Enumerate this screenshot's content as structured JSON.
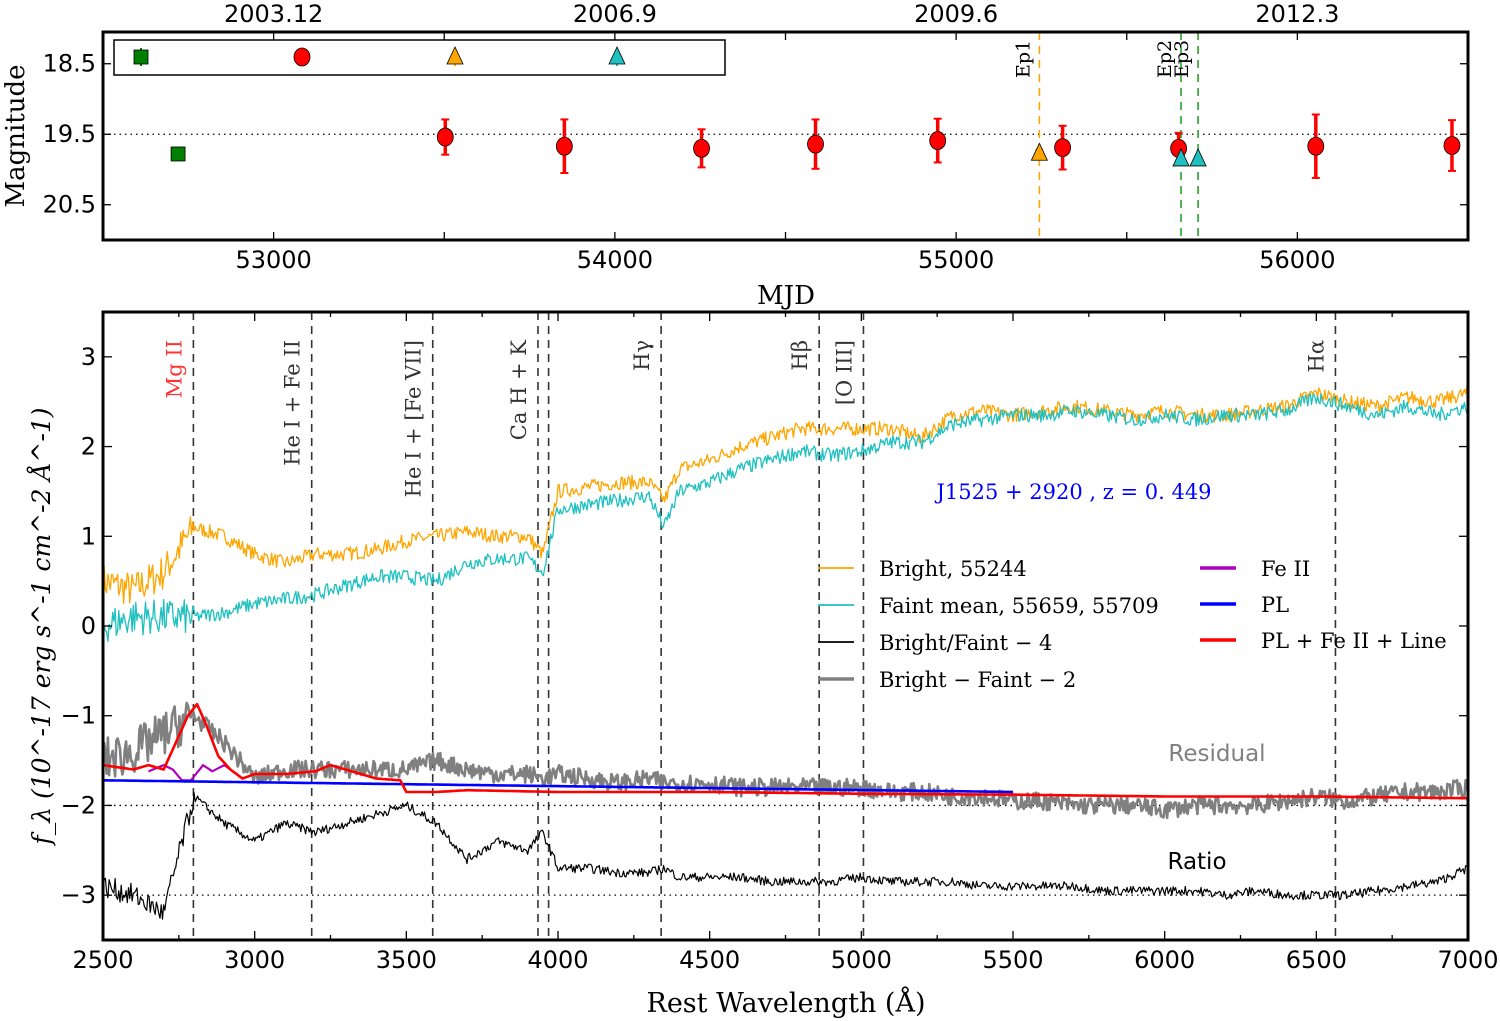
{
  "chart_data": [
    {
      "type": "scatter",
      "ylabel": "Magnitude",
      "xlabel": "MJD",
      "xlim": [
        52500,
        56500
      ],
      "ylim": [
        18.05,
        21.0
      ],
      "y_inverted": true,
      "x_ticks": [
        53000,
        54000,
        55000,
        56000
      ],
      "x_tick_labels": [
        "53000",
        "54000",
        "55000",
        "56000"
      ],
      "y_ticks": [
        18.5,
        19.5,
        20.5
      ],
      "y_tick_labels": [
        "18.5",
        "19.5",
        "20.5"
      ],
      "top_axis_ticks": [
        53000,
        54000,
        55000,
        56000
      ],
      "top_axis_labels": [
        "2003.12",
        "2006.9",
        "2009.6",
        "2012.3"
      ],
      "reference_line_y": 19.5,
      "legend": {
        "placement": "top",
        "entries": [
          {
            "marker": "square",
            "color": "#007f00"
          },
          {
            "marker": "circle",
            "color": "#ff0000"
          },
          {
            "marker": "triangle",
            "color": "#ffa500"
          },
          {
            "marker": "triangle",
            "color": "#20c0c0"
          }
        ]
      },
      "series": [
        {
          "marker": "square",
          "color": "#007f00",
          "x": [
            52720
          ],
          "y": [
            19.78
          ],
          "err": [
            0.03
          ]
        },
        {
          "marker": "circle",
          "color": "#ff0000",
          "x": [
            53503,
            53852,
            54254,
            54588,
            54946,
            55312,
            55652,
            56054,
            56453
          ],
          "y": [
            19.54,
            19.67,
            19.7,
            19.64,
            19.59,
            19.69,
            19.7,
            19.67,
            19.66
          ],
          "err": [
            0.25,
            0.38,
            0.27,
            0.35,
            0.31,
            0.31,
            0.22,
            0.45,
            0.36
          ]
        },
        {
          "marker": "triangle",
          "color": "#ffa500",
          "x": [
            55244
          ],
          "y": [
            19.77
          ],
          "err": [
            0.05
          ]
        },
        {
          "marker": "triangle",
          "color": "#20c0c0",
          "x": [
            55659,
            55709
          ],
          "y": [
            19.85,
            19.85
          ],
          "err": [
            0.04,
            0.03
          ]
        }
      ],
      "epochs": [
        {
          "label": "Ep1",
          "mjd": 55244,
          "color": "#ffa500"
        },
        {
          "label": "Ep2",
          "mjd": 55659,
          "color": "#2ca02c"
        },
        {
          "label": "Ep3",
          "mjd": 55709,
          "color": "#2ca02c"
        }
      ]
    },
    {
      "type": "line",
      "xlabel": "Rest Wavelength (Å)",
      "ylabel": "f_λ (10^-17 erg s^-1 cm^-2 Å^-1)",
      "xlim": [
        2500,
        7000
      ],
      "ylim": [
        -3.5,
        3.5
      ],
      "x_ticks": [
        2500,
        3000,
        3500,
        4000,
        4500,
        5000,
        5500,
        6000,
        6500,
        7000
      ],
      "x_tick_labels": [
        "2500",
        "3000",
        "3500",
        "4000",
        "4500",
        "5000",
        "5500",
        "6000",
        "6500",
        "7000"
      ],
      "y_ticks": [
        3,
        2,
        1,
        0,
        -1,
        -2,
        -3
      ],
      "y_tick_labels": [
        "3",
        "2",
        "1",
        "0",
        "−1",
        "−2",
        "−3"
      ],
      "reference_lines_y": [
        -2,
        -3
      ],
      "annotation": "J1525 + 2920 , z = 0. 449",
      "annotation_color": "#0000ff",
      "text_labels": [
        {
          "text": "Residual",
          "color": "#808080"
        },
        {
          "text": "Ratio",
          "color": "#000000"
        }
      ],
      "lines": [
        {
          "label": "Mg II",
          "wavelength": 2798,
          "color": "#ff3333"
        },
        {
          "label": "He I + Fe II",
          "wavelength": 3188,
          "color": "#333333"
        },
        {
          "label": "He I + [Fe VII]",
          "wavelength": 3587,
          "color": "#333333"
        },
        {
          "label": "Ca H + K",
          "wavelength": 3934,
          "color": "#333333"
        },
        {
          "label": "",
          "wavelength": 3969,
          "color": "#333333"
        },
        {
          "label": "Hγ",
          "wavelength": 4340,
          "color": "#333333"
        },
        {
          "label": "Hβ",
          "wavelength": 4861,
          "color": "#333333"
        },
        {
          "label": "[O III]",
          "wavelength": 5007,
          "color": "#333333"
        },
        {
          "label": "Hα",
          "wavelength": 6563,
          "color": "#333333"
        }
      ],
      "x": [
        2500,
        2600,
        2700,
        2800,
        2900,
        3000,
        3100,
        3200,
        3300,
        3400,
        3500,
        3600,
        3700,
        3800,
        3900,
        3950,
        4000,
        4100,
        4200,
        4300,
        4350,
        4400,
        4500,
        4600,
        4700,
        4800,
        4900,
        5000,
        5100,
        5200,
        5300,
        5400,
        5500,
        5600,
        5700,
        5800,
        5900,
        6000,
        6100,
        6200,
        6300,
        6400,
        6500,
        6600,
        6700,
        6800,
        6900,
        7000
      ],
      "series": [
        {
          "name": "Bright, 55244",
          "color": "#ffa500",
          "width": 1.3,
          "values": [
            0.5,
            0.4,
            0.6,
            1.1,
            1.0,
            0.8,
            0.7,
            0.8,
            0.8,
            0.85,
            0.95,
            1.0,
            1.05,
            1.0,
            1.0,
            0.8,
            1.5,
            1.55,
            1.6,
            1.6,
            1.4,
            1.75,
            1.85,
            2.0,
            2.1,
            2.2,
            2.2,
            2.2,
            2.2,
            2.1,
            2.35,
            2.4,
            2.35,
            2.4,
            2.45,
            2.4,
            2.35,
            2.4,
            2.35,
            2.35,
            2.4,
            2.45,
            2.6,
            2.5,
            2.45,
            2.55,
            2.5,
            2.6
          ]
        },
        {
          "name": "Faint mean, 55659, 55709",
          "color": "#20c0c0",
          "width": 1.3,
          "values": [
            0.0,
            0.1,
            0.1,
            0.1,
            0.15,
            0.25,
            0.3,
            0.35,
            0.45,
            0.55,
            0.55,
            0.5,
            0.7,
            0.75,
            0.75,
            0.6,
            1.3,
            1.35,
            1.4,
            1.45,
            1.1,
            1.5,
            1.6,
            1.75,
            1.85,
            1.95,
            1.9,
            1.95,
            2.05,
            2.05,
            2.25,
            2.3,
            2.35,
            2.35,
            2.4,
            2.35,
            2.3,
            2.35,
            2.3,
            2.35,
            2.35,
            2.4,
            2.55,
            2.45,
            2.35,
            2.45,
            2.35,
            2.45
          ]
        },
        {
          "name": "Bright/Faint − 4",
          "color": "#000000",
          "width": 1.2,
          "values": [
            -2.9,
            -3.0,
            -3.2,
            -1.9,
            -2.2,
            -2.4,
            -2.2,
            -2.3,
            -2.2,
            -2.1,
            -2.0,
            -2.2,
            -2.6,
            -2.4,
            -2.5,
            -2.3,
            -2.7,
            -2.7,
            -2.75,
            -2.75,
            -2.7,
            -2.8,
            -2.8,
            -2.8,
            -2.85,
            -2.85,
            -2.85,
            -2.8,
            -2.85,
            -2.85,
            -2.85,
            -2.9,
            -2.9,
            -2.9,
            -2.9,
            -2.95,
            -2.95,
            -2.95,
            -2.95,
            -3.0,
            -2.95,
            -3.0,
            -3.0,
            -3.0,
            -2.95,
            -2.9,
            -2.85,
            -2.7
          ]
        },
        {
          "name": "Bright − Faint − 2",
          "color": "#808080",
          "width": 2.6,
          "values": [
            -1.5,
            -1.4,
            -1.2,
            -1.0,
            -1.3,
            -1.7,
            -1.6,
            -1.6,
            -1.6,
            -1.6,
            -1.6,
            -1.5,
            -1.6,
            -1.65,
            -1.65,
            -1.7,
            -1.65,
            -1.7,
            -1.75,
            -1.7,
            -1.75,
            -1.75,
            -1.75,
            -1.8,
            -1.8,
            -1.8,
            -1.8,
            -1.8,
            -1.85,
            -1.85,
            -1.9,
            -1.9,
            -1.95,
            -1.95,
            -2.0,
            -2.0,
            -2.0,
            -2.05,
            -2.0,
            -2.0,
            -2.0,
            -1.95,
            -1.9,
            -1.95,
            -1.9,
            -1.85,
            -1.85,
            -1.8
          ]
        },
        {
          "name": "Fe II",
          "color": "#b000c0",
          "width": 2.2,
          "x": [
            2650,
            2700,
            2730,
            2760,
            2790,
            2830,
            2860,
            2900,
            2940
          ],
          "values": [
            -1.62,
            -1.55,
            -1.6,
            -1.72,
            -1.72,
            -1.55,
            -1.62,
            -1.55,
            -1.65
          ]
        },
        {
          "name": "PL",
          "color": "#0000ff",
          "width": 2.6,
          "x": [
            2500,
            5500
          ],
          "values": [
            -1.72,
            -1.85
          ]
        },
        {
          "name": "PL + Fe II + Line",
          "color": "#ff0000",
          "width": 2.6,
          "x": [
            2500,
            2600,
            2650,
            2700,
            2740,
            2780,
            2810,
            2840,
            2880,
            2920,
            2960,
            3000,
            3100,
            3200,
            3250,
            3300,
            3400,
            3480,
            3500,
            3600,
            3700,
            4000,
            4500,
            5000,
            5500,
            6000,
            6500,
            7000
          ],
          "values": [
            -1.55,
            -1.6,
            -1.55,
            -1.6,
            -1.3,
            -1.0,
            -0.87,
            -1.1,
            -1.45,
            -1.6,
            -1.7,
            -1.65,
            -1.65,
            -1.62,
            -1.55,
            -1.6,
            -1.7,
            -1.72,
            -1.85,
            -1.85,
            -1.83,
            -1.85,
            -1.85,
            -1.87,
            -1.88,
            -1.9,
            -1.9,
            -1.92
          ]
        }
      ],
      "legend": {
        "placement": "center-right",
        "columns": 2
      }
    }
  ]
}
